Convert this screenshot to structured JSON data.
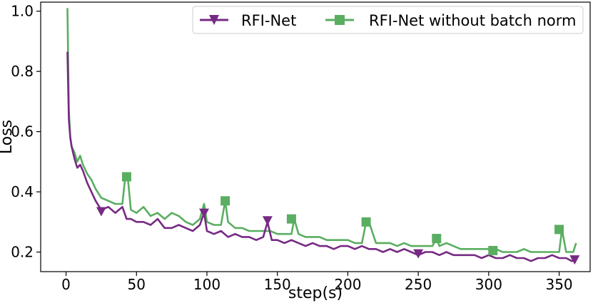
{
  "chart_data": {
    "type": "line",
    "title": "",
    "xlabel": "step(s)",
    "ylabel": "Loss",
    "xlim": [
      -18,
      372
    ],
    "ylim": [
      0.135,
      1.03
    ],
    "xticks": [
      "0",
      "50",
      "100",
      "150",
      "200",
      "250",
      "300",
      "350"
    ],
    "xtick_values": [
      0,
      50,
      100,
      150,
      200,
      250,
      300,
      350
    ],
    "yticks": [
      "0.2",
      "0.4",
      "0.6",
      "0.8",
      "1.0"
    ],
    "ytick_values": [
      0.2,
      0.4,
      0.6,
      0.8,
      1.0
    ],
    "grid": false,
    "legend_position": "top-right",
    "series": [
      {
        "name": "RFI-Net",
        "color": "#762a83",
        "marker": "triangle-down",
        "x": [
          1,
          2,
          3,
          4,
          6,
          8,
          10,
          12,
          15,
          18,
          21,
          25,
          30,
          35,
          40,
          43,
          46,
          50,
          55,
          60,
          65,
          70,
          75,
          80,
          85,
          90,
          95,
          98,
          100,
          105,
          110,
          115,
          120,
          125,
          130,
          135,
          140,
          143,
          146,
          150,
          155,
          160,
          165,
          170,
          175,
          180,
          185,
          190,
          195,
          200,
          205,
          210,
          215,
          220,
          225,
          230,
          235,
          240,
          245,
          250,
          255,
          260,
          265,
          270,
          275,
          280,
          285,
          290,
          295,
          300,
          305,
          310,
          315,
          320,
          325,
          330,
          335,
          340,
          345,
          350,
          355,
          359,
          361
        ],
        "values": [
          0.865,
          0.64,
          0.58,
          0.55,
          0.51,
          0.48,
          0.49,
          0.47,
          0.43,
          0.4,
          0.37,
          0.34,
          0.35,
          0.33,
          0.35,
          0.31,
          0.31,
          0.3,
          0.3,
          0.29,
          0.31,
          0.28,
          0.28,
          0.29,
          0.28,
          0.27,
          0.29,
          0.33,
          0.27,
          0.26,
          0.27,
          0.25,
          0.26,
          0.25,
          0.25,
          0.24,
          0.25,
          0.3,
          0.24,
          0.24,
          0.23,
          0.24,
          0.23,
          0.22,
          0.23,
          0.22,
          0.22,
          0.21,
          0.22,
          0.22,
          0.21,
          0.22,
          0.21,
          0.21,
          0.2,
          0.21,
          0.2,
          0.21,
          0.2,
          0.19,
          0.2,
          0.2,
          0.19,
          0.2,
          0.19,
          0.19,
          0.19,
          0.19,
          0.18,
          0.19,
          0.18,
          0.18,
          0.19,
          0.18,
          0.18,
          0.17,
          0.18,
          0.18,
          0.19,
          0.18,
          0.18,
          0.17,
          0.175
        ],
        "marker_x": [
          25,
          98,
          143,
          250,
          361
        ],
        "marker_y": [
          0.335,
          0.33,
          0.305,
          0.195,
          0.175
        ]
      },
      {
        "name": "RFI-Net without batch norm",
        "color": "#5aae61",
        "marker": "square",
        "x": [
          1,
          2,
          3,
          4,
          6,
          8,
          10,
          12,
          15,
          18,
          21,
          25,
          30,
          35,
          40,
          42,
          44,
          46,
          50,
          55,
          60,
          65,
          70,
          75,
          80,
          85,
          90,
          95,
          98,
          100,
          105,
          110,
          113,
          115,
          120,
          125,
          130,
          135,
          140,
          145,
          150,
          155,
          160,
          162,
          165,
          170,
          175,
          180,
          185,
          190,
          195,
          200,
          205,
          210,
          213,
          215,
          220,
          225,
          230,
          235,
          240,
          245,
          250,
          255,
          260,
          263,
          265,
          270,
          275,
          280,
          285,
          290,
          295,
          300,
          303,
          305,
          310,
          315,
          320,
          325,
          330,
          335,
          340,
          345,
          350,
          352,
          355,
          360,
          362
        ],
        "values": [
          1.01,
          0.67,
          0.58,
          0.55,
          0.53,
          0.5,
          0.52,
          0.49,
          0.46,
          0.44,
          0.41,
          0.38,
          0.37,
          0.36,
          0.36,
          0.45,
          0.44,
          0.34,
          0.33,
          0.35,
          0.32,
          0.33,
          0.31,
          0.33,
          0.32,
          0.3,
          0.29,
          0.31,
          0.36,
          0.3,
          0.29,
          0.29,
          0.37,
          0.3,
          0.28,
          0.28,
          0.27,
          0.27,
          0.27,
          0.27,
          0.26,
          0.26,
          0.26,
          0.31,
          0.26,
          0.25,
          0.25,
          0.25,
          0.24,
          0.24,
          0.24,
          0.24,
          0.23,
          0.23,
          0.3,
          0.3,
          0.23,
          0.23,
          0.23,
          0.22,
          0.23,
          0.22,
          0.22,
          0.22,
          0.22,
          0.245,
          0.22,
          0.23,
          0.22,
          0.21,
          0.21,
          0.21,
          0.21,
          0.21,
          0.205,
          0.21,
          0.2,
          0.2,
          0.2,
          0.21,
          0.2,
          0.2,
          0.2,
          0.2,
          0.2,
          0.275,
          0.2,
          0.2,
          0.23
        ],
        "marker_x": [
          43,
          113,
          160,
          213,
          263,
          303,
          350
        ],
        "marker_y": [
          0.45,
          0.37,
          0.31,
          0.3,
          0.245,
          0.205,
          0.275
        ]
      }
    ]
  }
}
